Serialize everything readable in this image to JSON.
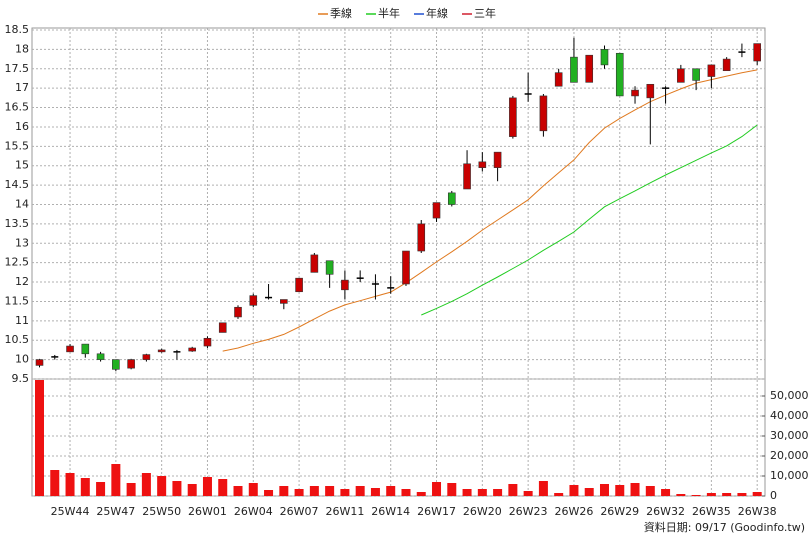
{
  "chart_data": [
    {
      "type": "candlestick",
      "categories": [
        null,
        null,
        "25W44",
        null,
        null,
        "25W47",
        null,
        null,
        "25W50",
        null,
        null,
        "26W01",
        null,
        null,
        "26W04",
        null,
        null,
        "26W07",
        null,
        null,
        "26W11",
        null,
        null,
        "26W14",
        null,
        null,
        "26W17",
        null,
        null,
        "26W20",
        null,
        null,
        "26W23",
        null,
        null,
        "26W26",
        null,
        null,
        "26W29",
        null,
        null,
        "26W32",
        null,
        null,
        "26W35",
        null,
        null,
        "26W38"
      ],
      "open": [
        9.85,
        10.07,
        10.2,
        10.4,
        10.15,
        10.0,
        9.78,
        10.0,
        10.2,
        10.2,
        10.22,
        10.35,
        10.7,
        11.1,
        11.4,
        11.6,
        11.45,
        11.75,
        12.25,
        12.55,
        11.8,
        12.1,
        11.95,
        11.85,
        11.95,
        12.8,
        13.65,
        14.3,
        14.4,
        14.95,
        14.95,
        15.75,
        16.85,
        15.9,
        17.05,
        17.8,
        17.15,
        18.0,
        17.9,
        16.8,
        16.75,
        17.0,
        17.15,
        17.5,
        17.3,
        17.45,
        17.93,
        17.7
      ],
      "high": [
        10.02,
        10.12,
        10.4,
        10.4,
        10.2,
        10.0,
        10.02,
        10.15,
        10.28,
        10.25,
        10.33,
        10.6,
        10.95,
        11.4,
        11.7,
        11.95,
        11.55,
        12.1,
        12.75,
        12.55,
        12.3,
        12.3,
        12.2,
        12.15,
        12.8,
        13.6,
        14.05,
        14.35,
        15.4,
        15.35,
        15.35,
        16.8,
        17.4,
        16.85,
        17.5,
        18.3,
        17.85,
        18.1,
        17.9,
        17.05,
        17.1,
        17.05,
        17.6,
        17.5,
        17.6,
        17.8,
        18.15,
        18.15
      ],
      "low": [
        9.8,
        10.0,
        10.2,
        10.05,
        9.95,
        9.7,
        9.75,
        9.95,
        10.18,
        10.0,
        10.2,
        10.3,
        10.7,
        11.05,
        11.35,
        11.55,
        11.3,
        11.75,
        12.25,
        11.85,
        11.55,
        12.0,
        11.55,
        11.7,
        11.9,
        12.75,
        13.55,
        13.95,
        14.4,
        14.85,
        14.6,
        15.7,
        16.65,
        15.75,
        17.05,
        17.15,
        17.15,
        17.5,
        16.8,
        16.6,
        15.55,
        16.6,
        17.15,
        16.95,
        17.0,
        17.45,
        17.8,
        17.6
      ],
      "close": [
        10.0,
        10.07,
        10.35,
        10.15,
        10.0,
        9.75,
        10.0,
        10.13,
        10.25,
        10.2,
        10.3,
        10.55,
        10.95,
        11.35,
        11.65,
        11.6,
        11.55,
        12.1,
        12.7,
        12.2,
        12.05,
        12.1,
        11.95,
        11.85,
        12.8,
        13.5,
        14.05,
        14.0,
        15.05,
        15.1,
        15.35,
        16.75,
        16.85,
        16.8,
        17.4,
        17.15,
        17.85,
        17.6,
        16.8,
        16.95,
        17.1,
        17.0,
        17.5,
        17.2,
        17.6,
        17.75,
        17.93,
        18.15
      ],
      "up_color": "#c80000",
      "down_color": "#22b022",
      "flat_color": "#000000",
      "ylim": [
        9.5,
        18.5
      ],
      "yticks": [
        9.5,
        10,
        10.5,
        11,
        11.5,
        12,
        12.5,
        13,
        13.5,
        14,
        14.5,
        15,
        15.5,
        16,
        16.5,
        17,
        17.5,
        18,
        18.5
      ],
      "grid": true,
      "legend": "top",
      "series": [
        {
          "name": "季線",
          "color": "#e07a20",
          "values": [
            null,
            null,
            null,
            null,
            null,
            null,
            null,
            null,
            null,
            null,
            null,
            null,
            10.22,
            10.3,
            10.42,
            10.52,
            10.65,
            10.84,
            11.05,
            11.25,
            11.41,
            11.52,
            11.63,
            11.74,
            11.98,
            12.25,
            12.52,
            12.78,
            13.05,
            13.34,
            13.6,
            13.86,
            14.12,
            14.48,
            14.82,
            15.15,
            15.6,
            15.97,
            16.22,
            16.44,
            16.65,
            16.82,
            16.98,
            17.13,
            17.22,
            17.31,
            17.4,
            17.47
          ]
        },
        {
          "name": "半年",
          "color": "#22cc22",
          "values": [
            null,
            null,
            null,
            null,
            null,
            null,
            null,
            null,
            null,
            null,
            null,
            null,
            null,
            null,
            null,
            null,
            null,
            null,
            null,
            null,
            null,
            null,
            null,
            null,
            null,
            11.15,
            11.32,
            11.5,
            11.7,
            11.92,
            12.13,
            12.35,
            12.57,
            12.82,
            13.05,
            13.29,
            13.62,
            13.94,
            14.15,
            14.35,
            14.56,
            14.76,
            14.95,
            15.14,
            15.33,
            15.51,
            15.75,
            16.05
          ]
        },
        {
          "name": "年線",
          "color": "#2050d0",
          "values": [
            null,
            null,
            null,
            null,
            null,
            null,
            null,
            null,
            null,
            null,
            null,
            null,
            null,
            null,
            null,
            null,
            null,
            null,
            null,
            null,
            null,
            null,
            null,
            null,
            null,
            null,
            null,
            null,
            null,
            null,
            null,
            null,
            null,
            null,
            null,
            null,
            null,
            null,
            null,
            null,
            null,
            null,
            null,
            null,
            null,
            null,
            null,
            null
          ]
        },
        {
          "name": "三年",
          "color": "#d02030",
          "values": [
            null,
            null,
            null,
            null,
            null,
            null,
            null,
            null,
            null,
            null,
            null,
            null,
            null,
            null,
            null,
            null,
            null,
            null,
            null,
            null,
            null,
            null,
            null,
            null,
            null,
            null,
            null,
            null,
            null,
            null,
            null,
            null,
            null,
            null,
            null,
            null,
            null,
            null,
            null,
            null,
            null,
            null,
            null,
            null,
            null,
            null,
            null,
            null
          ]
        }
      ]
    },
    {
      "type": "bar",
      "values": [
        58000,
        13000,
        11500,
        9000,
        7000,
        16000,
        6500,
        11500,
        10000,
        7500,
        6000,
        9500,
        8500,
        5000,
        6500,
        3000,
        5000,
        3500,
        5000,
        5000,
        3500,
        5000,
        4000,
        5000,
        3500,
        2000,
        7000,
        6500,
        3500,
        3500,
        3500,
        6000,
        2500,
        7500,
        1500,
        5500,
        4000,
        6000,
        5500,
        6500,
        5000,
        3500,
        1000,
        500,
        1500,
        1500,
        1500,
        2000
      ],
      "color": "#ee1111",
      "ylim": [
        0,
        58000
      ],
      "yticks": [
        0,
        {
          "value": 10000,
          "label": "10,000"
        },
        {
          "value": 20000,
          "label": "20,000"
        },
        {
          "value": 30000,
          "label": "30,000"
        },
        {
          "value": 40000,
          "label": "40,000"
        },
        {
          "value": 50000,
          "label": "50,000"
        }
      ],
      "grid": true
    }
  ],
  "footer": "資料日期: 09/17 (Goodinfo.tw)"
}
